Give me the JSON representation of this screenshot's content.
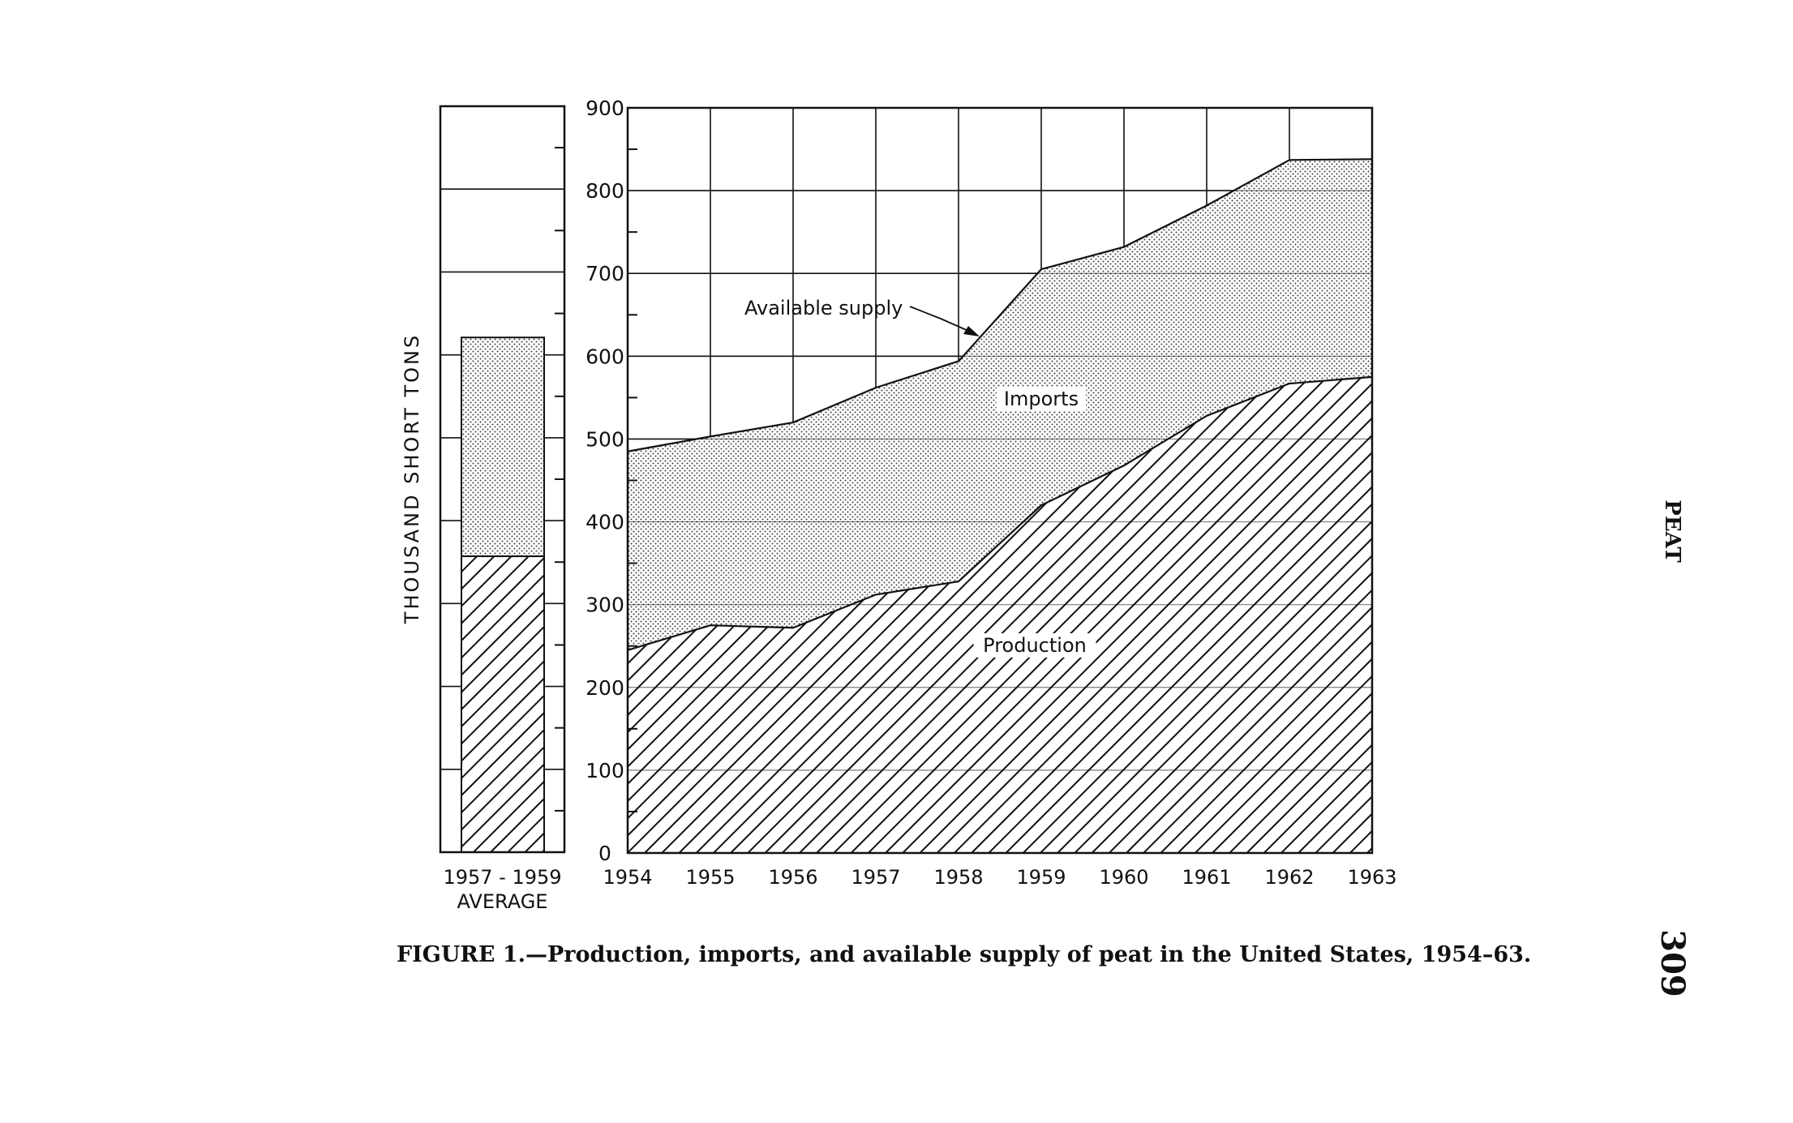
{
  "page": {
    "running_head": "PEAT",
    "page_number": "309",
    "caption": "FIGURE 1.—Production, imports, and available supply of peat in the United States, 1954–63."
  },
  "chart_data": [
    {
      "type": "area",
      "stacked": true,
      "x": [
        "1954",
        "1955",
        "1956",
        "1957",
        "1958",
        "1959",
        "1960",
        "1961",
        "1962",
        "1963"
      ],
      "series": [
        {
          "name": "Production",
          "values": [
            245,
            275,
            272,
            312,
            328,
            420,
            468,
            528,
            567,
            575
          ]
        },
        {
          "name": "Imports",
          "values": [
            240,
            228,
            248,
            250,
            266,
            285,
            264,
            254,
            270,
            263
          ]
        }
      ],
      "total_line": {
        "name": "Available supply",
        "values": [
          485,
          503,
          520,
          562,
          594,
          705,
          732,
          782,
          837,
          838
        ]
      },
      "ylabel": "THOUSAND SHORT TONS",
      "ylim": [
        0,
        900
      ],
      "yticks": [
        "0",
        "100",
        "200",
        "300",
        "400",
        "500",
        "600",
        "700",
        "800",
        "900"
      ],
      "grid": true,
      "annotations": [
        "Available supply",
        "Imports",
        "Production"
      ],
      "fills": {
        "Production": "diagonal-hatch",
        "Imports": "stipple"
      }
    },
    {
      "type": "bar",
      "stacked": true,
      "categories": [
        "1957-1959"
      ],
      "category_label": "AVERAGE",
      "series": [
        {
          "name": "Production",
          "values": [
            357
          ]
        },
        {
          "name": "Imports",
          "values": [
            264
          ]
        }
      ],
      "ylim": [
        0,
        900
      ],
      "grid": true
    }
  ],
  "colors": {
    "ink": "#111111",
    "paper": "#ffffff"
  }
}
